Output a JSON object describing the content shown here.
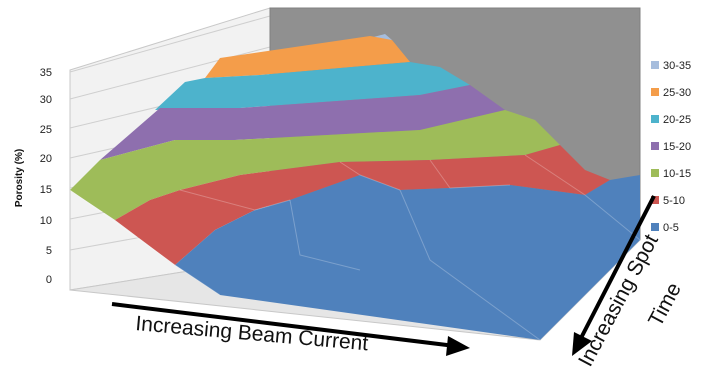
{
  "chart_data": {
    "type": "surface",
    "title": "",
    "ylabel": "Porosity (%)",
    "zlim": [
      0,
      35
    ],
    "z_ticks": [
      "0",
      "5",
      "10",
      "15",
      "20",
      "25",
      "30",
      "35"
    ],
    "grid": true,
    "legend_position": "right",
    "legend": [
      {
        "label": "30-35",
        "color": "#a6bddd"
      },
      {
        "label": "25-30",
        "color": "#f49d4a"
      },
      {
        "label": "20-25",
        "color": "#4db3cc"
      },
      {
        "label": "15-20",
        "color": "#8e6fae"
      },
      {
        "label": "10-15",
        "color": "#9ebc59"
      },
      {
        "label": "5-10",
        "color": "#cd5652"
      },
      {
        "label": "0-5",
        "color": "#4f81bc"
      }
    ],
    "x_axis_annotation": "Increasing Beam Current",
    "z_axis_annotation_line1": "Increasing Spot",
    "z_axis_annotation_line2": "Time"
  }
}
